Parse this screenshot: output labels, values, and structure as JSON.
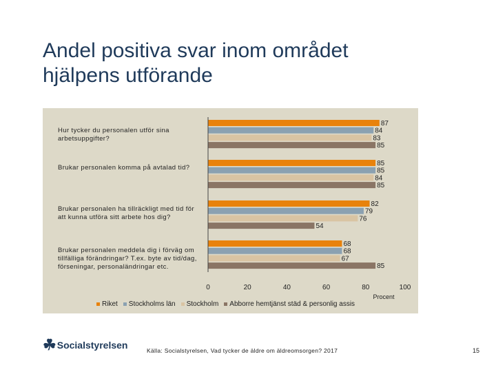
{
  "title_line1": "Andel positiva svar inom området",
  "title_line2": "hjälpens utförande",
  "source": "Källa: Socialstyrelsen, Vad tycker de äldre om äldreomsorgen? 2017",
  "page_number": "15",
  "logo_text": "Socialstyrelsen",
  "colors": {
    "panel": "#ddd9c8",
    "axis": "#444444"
  },
  "chart_data": {
    "type": "bar",
    "orientation": "horizontal",
    "xlabel": "Procent",
    "xlim": [
      0,
      100
    ],
    "xticks": [
      "0",
      "20",
      "40",
      "60",
      "80",
      "100"
    ],
    "categories": [
      "Hur tycker du personalen utför sina arbetsuppgifter?",
      "Brukar personalen komma på avtalad tid?",
      "Brukar personalen ha tillräckligt med tid för att kunna utföra sitt arbete hos dig?",
      "Brukar personalen meddela dig i förväg om tillfälliga förändringar? T.ex. byte av tid/dag, förseningar, personaländringar etc."
    ],
    "series": [
      {
        "name": "Riket",
        "color": "#e8820c",
        "values": [
          87,
          85,
          82,
          68
        ]
      },
      {
        "name": "Stockholms län",
        "color": "#8ba1b1",
        "values": [
          84,
          85,
          79,
          68
        ]
      },
      {
        "name": "Stockholm",
        "color": "#d9c4a3",
        "values": [
          83,
          84,
          76,
          67
        ]
      },
      {
        "name": "Abborre hemtjänst städ & personlig assis",
        "color": "#8a7565",
        "values": [
          85,
          85,
          54,
          85
        ]
      }
    ],
    "legend_position": "bottom"
  }
}
